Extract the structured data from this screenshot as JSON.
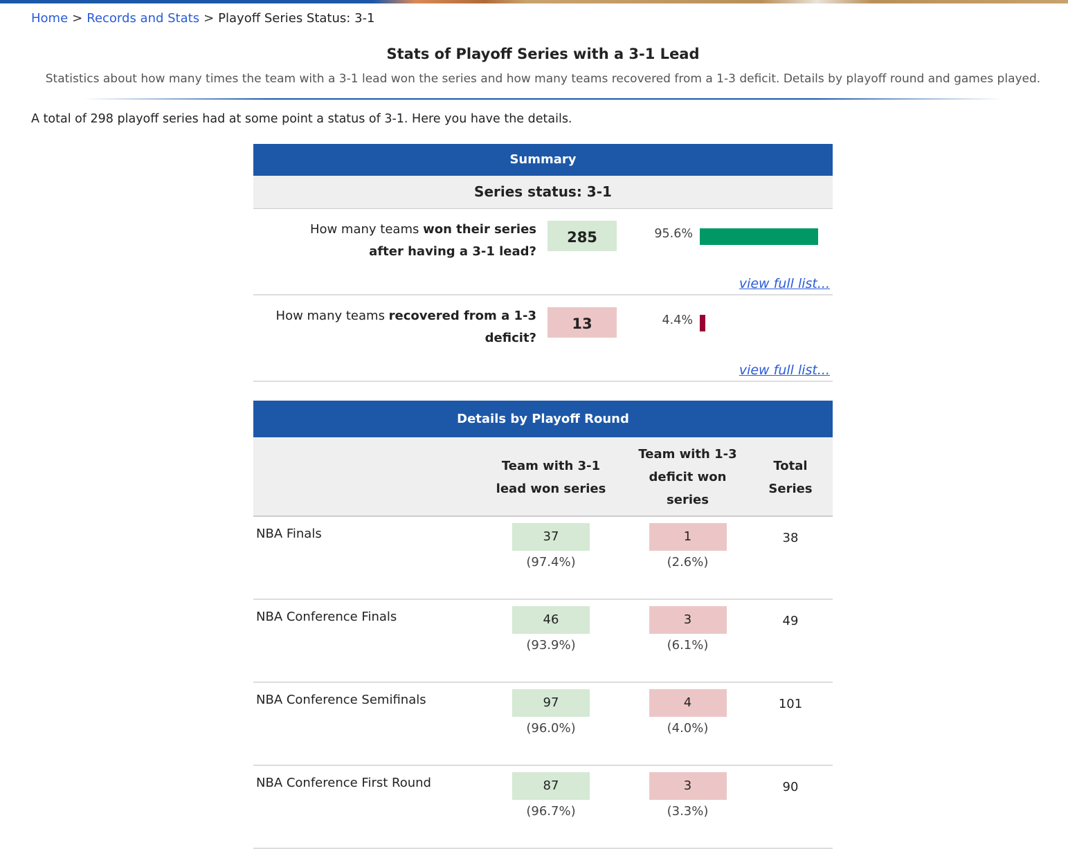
{
  "breadcrumb": {
    "items": [
      "Home",
      "Records and Stats"
    ],
    "current": "Playoff Series Status: 3-1",
    "separator": ">"
  },
  "page": {
    "title": "Stats of Playoff Series with a 3-1 Lead",
    "subtitle": "Statistics about how many times the team with a 3-1 lead won the series and how many teams recovered from a 1-3 deficit. Details by playoff round and games played.",
    "intro": "A total of 298 playoff series had at some point a status of 3-1. Here you have the details."
  },
  "summary": {
    "header": "Summary",
    "status": "Series status: 3-1",
    "rows": [
      {
        "q_pre": "How many teams ",
        "q_bold": "won their series after having a 3-1 lead?",
        "value": "285",
        "pct": "95.6%",
        "pct_value": 95.6,
        "color": "#009966",
        "link": "view full list..."
      },
      {
        "q_pre": "How many teams ",
        "q_bold": "recovered from a 1-3 deficit?",
        "value": "13",
        "pct": "4.4%",
        "pct_value": 4.4,
        "color": "#990033",
        "link": "view full list..."
      }
    ]
  },
  "details": {
    "header": "Details by Playoff Round",
    "columns": [
      "",
      "Team with 3-1 lead won series",
      "Team with 1-3 deficit won series",
      "Total Series"
    ],
    "rows": [
      {
        "round": "NBA Finals",
        "won": "37",
        "won_pct": "(97.4%)",
        "lost": "1",
        "lost_pct": "(2.6%)",
        "total": "38"
      },
      {
        "round": "NBA Conference Finals",
        "won": "46",
        "won_pct": "(93.9%)",
        "lost": "3",
        "lost_pct": "(6.1%)",
        "total": "49"
      },
      {
        "round": "NBA Conference Semifinals",
        "won": "97",
        "won_pct": "(96.0%)",
        "lost": "4",
        "lost_pct": "(4.0%)",
        "total": "101"
      },
      {
        "round": "NBA Conference First Round",
        "won": "87",
        "won_pct": "(96.7%)",
        "lost": "3",
        "lost_pct": "(3.3%)",
        "total": "90"
      }
    ]
  }
}
